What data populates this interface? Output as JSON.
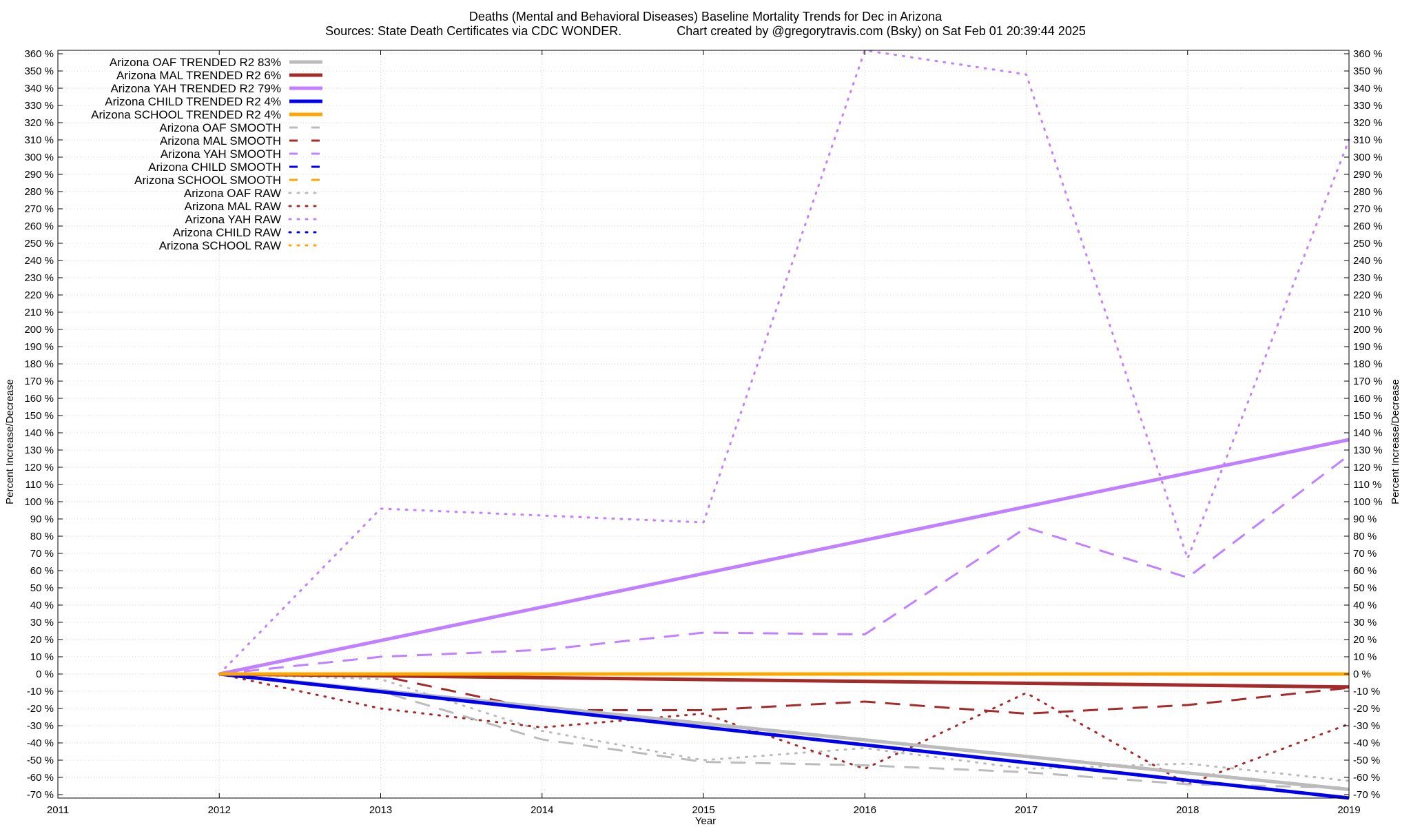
{
  "chart_data": {
    "type": "line",
    "title": "Deaths (Mental and Behavioral Diseases)  Baseline Mortality Trends for Dec in Arizona",
    "subtitle": "Sources: State Death Certificates via CDC WONDER.                Chart created by @gregorytravis.com (Bsky) on Sat Feb 01 20:39:44 2025",
    "xlabel": "Year",
    "ylabel": "Percent Increase/Decrease",
    "y2label": "Percent Increase/Decrease",
    "xlim": [
      2011,
      2019
    ],
    "ylim": [
      -72,
      362
    ],
    "x_ticks": [
      "2011",
      "2012",
      "2013",
      "2014",
      "2015",
      "2016",
      "2017",
      "2018",
      "2019"
    ],
    "y_ticks": [
      "360 %",
      "350 %",
      "340 %",
      "330 %",
      "320 %",
      "310 %",
      "300 %",
      "290 %",
      "280 %",
      "270 %",
      "260 %",
      "250 %",
      "240 %",
      "230 %",
      "220 %",
      "210 %",
      "200 %",
      "190 %",
      "180 %",
      "170 %",
      "160 %",
      "150 %",
      "140 %",
      "130 %",
      "120 %",
      "110 %",
      "100 %",
      "90 %",
      "80 %",
      "70 %",
      "60 %",
      "50 %",
      "40 %",
      "30 %",
      "20 %",
      "10 %",
      "0 %",
      "-10 %",
      "-20 %",
      "-30 %",
      "-40 %",
      "-50 %",
      "-60 %",
      "-70 %"
    ],
    "grid": true,
    "legend_position": "top-left",
    "series": [
      {
        "name": "Arizona OAF TRENDED R2  83%",
        "color": "#bbbbbb",
        "style": "solid",
        "width": 5,
        "x": [
          2012,
          2019
        ],
        "y": [
          0,
          -67
        ]
      },
      {
        "name": "Arizona MAL TRENDED R2   6%",
        "color": "#a52a2a",
        "style": "solid",
        "width": 5,
        "x": [
          2012,
          2019
        ],
        "y": [
          0,
          -7.5
        ]
      },
      {
        "name": "Arizona YAH TRENDED R2  79%",
        "color": "#c080ff",
        "style": "solid",
        "width": 5,
        "x": [
          2012,
          2019
        ],
        "y": [
          0,
          136
        ]
      },
      {
        "name": "Arizona CHILD TRENDED R2   4%",
        "color": "#0000ee",
        "style": "solid",
        "width": 5,
        "x": [
          2012,
          2019
        ],
        "y": [
          0,
          -72
        ]
      },
      {
        "name": "Arizona SCHOOL TRENDED R2   4%",
        "color": "#ffa500",
        "style": "solid",
        "width": 5,
        "x": [
          2012,
          2019
        ],
        "y": [
          0,
          0
        ]
      },
      {
        "name": "Arizona OAF SMOOTH",
        "color": "#bbbbbb",
        "style": "dashed",
        "width": 3,
        "x": [
          2012,
          2013,
          2014,
          2015,
          2016,
          2017,
          2018,
          2019
        ],
        "y": [
          0,
          -10,
          -38,
          -51,
          -53,
          -57,
          -64,
          -66
        ]
      },
      {
        "name": "Arizona MAL SMOOTH",
        "color": "#a52a2a",
        "style": "dashed",
        "width": 3,
        "x": [
          2012,
          2013,
          2014,
          2015,
          2016,
          2017,
          2018,
          2019
        ],
        "y": [
          0,
          -1,
          -21,
          -21,
          -16,
          -23,
          -18,
          -8
        ]
      },
      {
        "name": "Arizona YAH SMOOTH",
        "color": "#c080ff",
        "style": "dashed",
        "width": 3,
        "x": [
          2012,
          2013,
          2014,
          2015,
          2016,
          2017,
          2018,
          2019
        ],
        "y": [
          0,
          10,
          14,
          24,
          23,
          85,
          56,
          127
        ]
      },
      {
        "name": "Arizona CHILD SMOOTH",
        "color": "#0000ee",
        "style": "dashed",
        "width": 3,
        "x": [
          2012,
          2019
        ],
        "y": [
          0,
          0
        ]
      },
      {
        "name": "Arizona SCHOOL SMOOTH",
        "color": "#ffa500",
        "style": "dashed",
        "width": 3,
        "x": [
          2012,
          2019
        ],
        "y": [
          0,
          0
        ]
      },
      {
        "name": "Arizona OAF RAW",
        "color": "#bbbbbb",
        "style": "dotted",
        "width": 3,
        "x": [
          2012,
          2013,
          2014,
          2015,
          2016,
          2017,
          2018,
          2019
        ],
        "y": [
          0,
          -3,
          -33,
          -50,
          -43,
          -55,
          -52,
          -62
        ]
      },
      {
        "name": "Arizona MAL RAW",
        "color": "#a52a2a",
        "style": "dotted",
        "width": 3,
        "x": [
          2012,
          2013,
          2014,
          2015,
          2016,
          2017,
          2018,
          2019
        ],
        "y": [
          0,
          -20,
          -31,
          -23,
          -55,
          -11,
          -64,
          -29
        ]
      },
      {
        "name": "Arizona YAH RAW",
        "color": "#c080ff",
        "style": "dotted",
        "width": 3,
        "x": [
          2012,
          2013,
          2014,
          2015,
          2016,
          2017,
          2018,
          2019
        ],
        "y": [
          0,
          96,
          92,
          88,
          362,
          348,
          67,
          310
        ]
      },
      {
        "name": "Arizona CHILD RAW",
        "color": "#0000ee",
        "style": "dotted",
        "width": 3,
        "x": [
          2012,
          2019
        ],
        "y": [
          0,
          0
        ]
      },
      {
        "name": "Arizona SCHOOL RAW",
        "color": "#ffa500",
        "style": "dotted",
        "width": 3,
        "x": [
          2012,
          2019
        ],
        "y": [
          0,
          0
        ]
      }
    ]
  }
}
